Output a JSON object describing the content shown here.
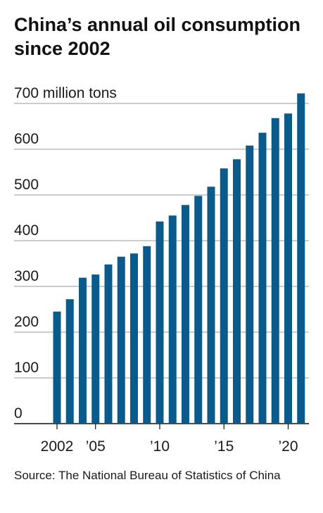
{
  "chart_data": {
    "type": "bar",
    "title": "China’s annual oil consumption since 2002",
    "ylabel": "",
    "unit_label": "million tons",
    "ylim": [
      0,
      700
    ],
    "yticks": [
      0,
      100,
      200,
      300,
      400,
      500,
      600,
      700
    ],
    "ytick_labels": [
      "0",
      "100",
      "200",
      "300",
      "400",
      "500",
      "600",
      "700 million tons"
    ],
    "categories": [
      2002,
      2003,
      2004,
      2005,
      2006,
      2007,
      2008,
      2009,
      2010,
      2011,
      2012,
      2013,
      2014,
      2015,
      2016,
      2017,
      2018,
      2019,
      2020,
      2021
    ],
    "values": [
      245,
      272,
      319,
      326,
      348,
      365,
      372,
      388,
      442,
      455,
      478,
      498,
      518,
      558,
      578,
      608,
      636,
      668,
      678,
      722
    ],
    "xticks": [
      {
        "year": 2002,
        "label": "2002"
      },
      {
        "year": 2005,
        "label": "’05"
      },
      {
        "year": 2010,
        "label": "’10"
      },
      {
        "year": 2015,
        "label": "’15"
      },
      {
        "year": 2020,
        "label": "’20"
      }
    ],
    "grid": true,
    "bar_color": "#0b5a8c",
    "grid_color": "#9a9a9a",
    "axis_color": "#111111",
    "source": "Source: The National Bureau of Statistics of China"
  }
}
